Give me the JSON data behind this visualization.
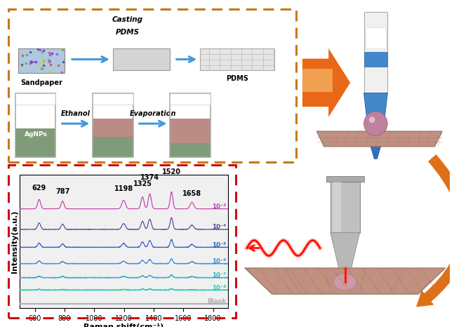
{
  "raman_peaks": [
    629,
    787,
    1198,
    1325,
    1374,
    1520,
    1658
  ],
  "peak_labels": [
    "629",
    "787",
    "1198",
    "1325",
    "1374",
    "1520",
    "1658"
  ],
  "xmin": 500,
  "xmax": 1900,
  "xlabel": "Raman shift(cm⁻¹)",
  "ylabel": "Intensity(a.u.)",
  "legend_labels": [
    "10⁻³",
    "10⁻⁴",
    "10⁻⁵",
    "10⁻⁶",
    "10⁻⁷",
    "10⁻⁸",
    "Blank"
  ],
  "line_colors": [
    "#c040b0",
    "#6040a0",
    "#3060c0",
    "#4090e0",
    "#30b0c8",
    "#20d0b0",
    "#b0b0b0"
  ],
  "bg_color": "#ffffff",
  "orange_border_color": "#c87818",
  "red_border_color": "#cc1010",
  "raman_bg": "#f0f0f0",
  "peak_heights_base": [
    0.55,
    0.45,
    0.5,
    0.7,
    0.88,
    1.0,
    0.38
  ],
  "peak_widths": [
    10,
    10,
    12,
    10,
    10,
    9,
    12
  ],
  "scale_factors": [
    1.0,
    0.68,
    0.45,
    0.27,
    0.15,
    0.08,
    0.0
  ],
  "offsets": [
    5.8,
    4.6,
    3.55,
    2.6,
    1.78,
    1.05,
    0.25
  ]
}
